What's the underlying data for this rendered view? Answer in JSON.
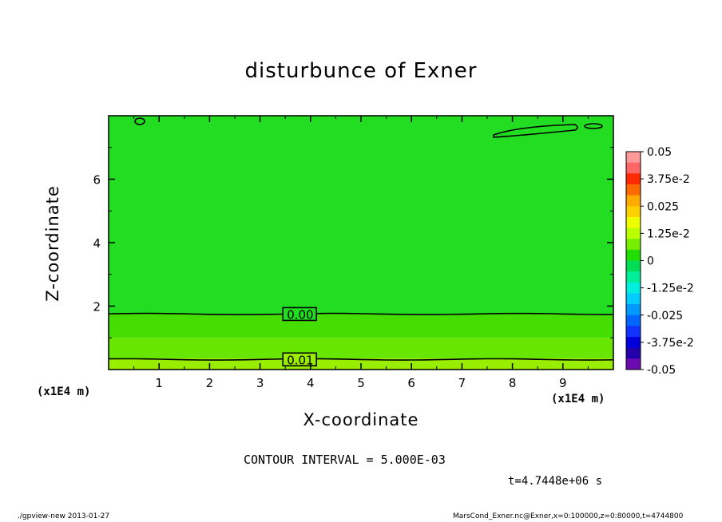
{
  "chart_data": {
    "type": "heatmap",
    "title": "disturbunce of Exner",
    "xlabel": "X-coordinate",
    "ylabel": "Z-coordinate",
    "x_unit_label": "(x1E4 m)",
    "xlim": [
      0,
      10
    ],
    "ylim": [
      0,
      8
    ],
    "x_ticks": [
      "1",
      "2",
      "3",
      "4",
      "5",
      "6",
      "7",
      "8",
      "9"
    ],
    "y_ticks": [
      "2",
      "4",
      "6"
    ],
    "bands": [
      {
        "z_from": 0.0,
        "z_to": 0.35,
        "color": "#99ee00"
      },
      {
        "z_from": 0.35,
        "z_to": 1.0,
        "color": "#66e600"
      },
      {
        "z_from": 1.0,
        "z_to": 1.75,
        "color": "#44df00"
      },
      {
        "z_from": 1.75,
        "z_to": 8.0,
        "color": "#22dd22"
      }
    ],
    "contour_labels": [
      {
        "label": "0.00",
        "x": 3.5,
        "z": 1.75
      },
      {
        "label": "0.01",
        "x": 3.5,
        "z": 0.32
      }
    ],
    "colorbar": {
      "labels": [
        "0.05",
        "3.75e-2",
        "0.025",
        "1.25e-2",
        "0",
        "-1.25e-2",
        "-0.025",
        "-3.75e-2",
        "-0.05"
      ],
      "colors": [
        "#ff9999",
        "#ff6666",
        "#ff2a00",
        "#ff6a00",
        "#ffaa00",
        "#ffd000",
        "#eeff00",
        "#bbff00",
        "#77ee00",
        "#22dd00",
        "#00dd55",
        "#00ee99",
        "#00eedd",
        "#00ccff",
        "#0099ff",
        "#0066ff",
        "#1133ff",
        "#0000dd",
        "#2200aa",
        "#6a0ab0"
      ]
    },
    "contour_interval": "CONTOUR INTERVAL = 5.000E-03",
    "time": "t=4.7448e+06 s"
  },
  "footer": {
    "left": "./gpview-new   2013-01-27",
    "right": "MarsCond_Exner.nc@Exner,x=0:100000,z=0:80000,t=4744800"
  }
}
